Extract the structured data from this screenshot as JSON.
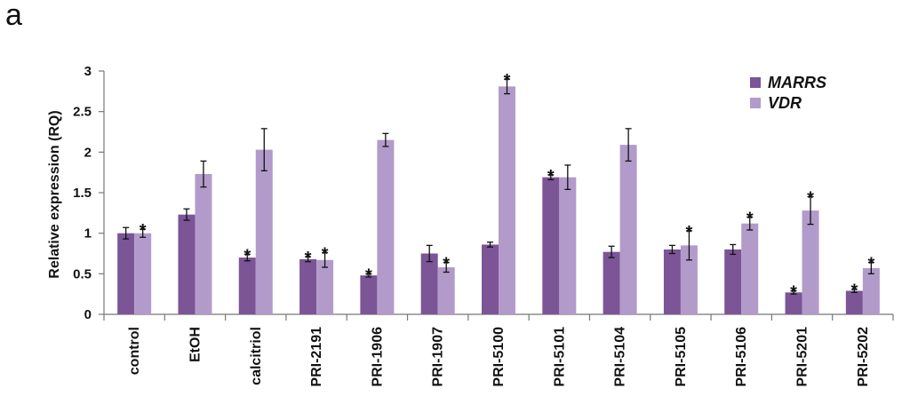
{
  "panel_label": "a",
  "chart_data": {
    "type": "bar",
    "ylabel": "Relative expression (RQ)",
    "xlabel": "",
    "ylim": [
      0,
      3
    ],
    "yticks": [
      "0",
      "0.5",
      "1",
      "1.5",
      "2",
      "2.5",
      "3"
    ],
    "categories": [
      "control",
      "EtOH",
      "calcitriol",
      "PRI-2191",
      "PRI-1906",
      "PRI-1907",
      "PRI-5100",
      "PRI-5101",
      "PRI-5104",
      "PRI-5105",
      "PRI-5106",
      "PRI-5201",
      "PRI-5202"
    ],
    "legend_position": "top-right",
    "series": [
      {
        "name": "MARRS",
        "color": "#7b5596",
        "values": [
          1.0,
          1.23,
          0.7,
          0.68,
          0.48,
          0.75,
          0.86,
          1.69,
          0.77,
          0.8,
          0.8,
          0.27,
          0.29
        ],
        "errors": [
          0.07,
          0.07,
          0.04,
          0.03,
          0.02,
          0.1,
          0.03,
          0.03,
          0.07,
          0.05,
          0.06,
          0.02,
          0.02
        ],
        "significant": [
          false,
          false,
          true,
          true,
          true,
          false,
          false,
          true,
          false,
          false,
          false,
          true,
          true
        ]
      },
      {
        "name": "VDR",
        "color": "#b29bca",
        "values": [
          1.0,
          1.73,
          2.03,
          0.67,
          2.15,
          0.58,
          2.81,
          1.69,
          2.09,
          0.85,
          1.12,
          1.28,
          0.57
        ],
        "errors": [
          0.05,
          0.16,
          0.26,
          0.09,
          0.08,
          0.06,
          0.09,
          0.15,
          0.2,
          0.18,
          0.08,
          0.17,
          0.07
        ],
        "significant": [
          true,
          false,
          false,
          true,
          false,
          true,
          true,
          false,
          false,
          true,
          true,
          true,
          true
        ]
      }
    ],
    "significance_marker": "*"
  }
}
